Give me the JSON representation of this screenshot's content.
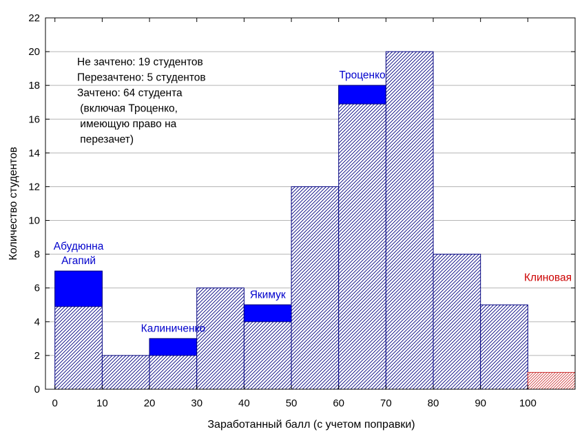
{
  "chart_data": {
    "type": "bar",
    "xlabel": "Заработанный балл (с учетом поправки)",
    "ylabel": "Количество студентов",
    "xlim": [
      -2,
      110
    ],
    "ylim": [
      0,
      22
    ],
    "xticks": [
      "0",
      "10",
      "20",
      "30",
      "40",
      "50",
      "60",
      "70",
      "80",
      "90",
      "100"
    ],
    "yticks": [
      "0",
      "2",
      "4",
      "6",
      "8",
      "10",
      "12",
      "14",
      "16",
      "18",
      "20",
      "22"
    ],
    "grid": true,
    "bins": [
      {
        "from": 0,
        "to": 10,
        "value": 7,
        "highlight": [
          4.9,
          7
        ]
      },
      {
        "from": 10,
        "to": 20,
        "value": 2
      },
      {
        "from": 20,
        "to": 30,
        "value": 3,
        "highlight": [
          2,
          3
        ]
      },
      {
        "from": 30,
        "to": 40,
        "value": 6
      },
      {
        "from": 40,
        "to": 50,
        "value": 5,
        "highlight": [
          4,
          5
        ]
      },
      {
        "from": 50,
        "to": 60,
        "value": 12
      },
      {
        "from": 60,
        "to": 70,
        "value": 18,
        "highlight": [
          16.9,
          18
        ]
      },
      {
        "from": 70,
        "to": 80,
        "value": 20
      },
      {
        "from": 80,
        "to": 90,
        "value": 8
      },
      {
        "from": 90,
        "to": 100,
        "value": 5
      },
      {
        "from": 100,
        "to": 110,
        "value": 1,
        "style": "red"
      }
    ],
    "summary": [
      "Не зачтено: 19 студентов",
      "Перезачтено: 5 студентов",
      "Зачтено: 64 студента",
      " (включая Троценко,",
      " имеющую право на",
      " перезачет)"
    ],
    "annotations": [
      {
        "lines": [
          "Абудюнна",
          "Агапий"
        ],
        "x": 5,
        "y": 7,
        "color": "#0000cc"
      },
      {
        "lines": [
          "Калиниченко"
        ],
        "x": 25,
        "y": 3,
        "color": "#0000cc"
      },
      {
        "lines": [
          "Якимук"
        ],
        "x": 45,
        "y": 5,
        "color": "#0000cc"
      },
      {
        "lines": [
          "Троценко"
        ],
        "x": 65,
        "y": 18,
        "color": "#0000cc"
      },
      {
        "lines": [
          "Клиновая"
        ],
        "x": 111.5,
        "y": 6,
        "color": "#cc0000"
      }
    ],
    "colors": {
      "bar_outline": "#000080",
      "highlight": "#0000ff",
      "red_bar": "#cc3333",
      "grid": "#b4b4b4",
      "axis": "#000000"
    }
  }
}
